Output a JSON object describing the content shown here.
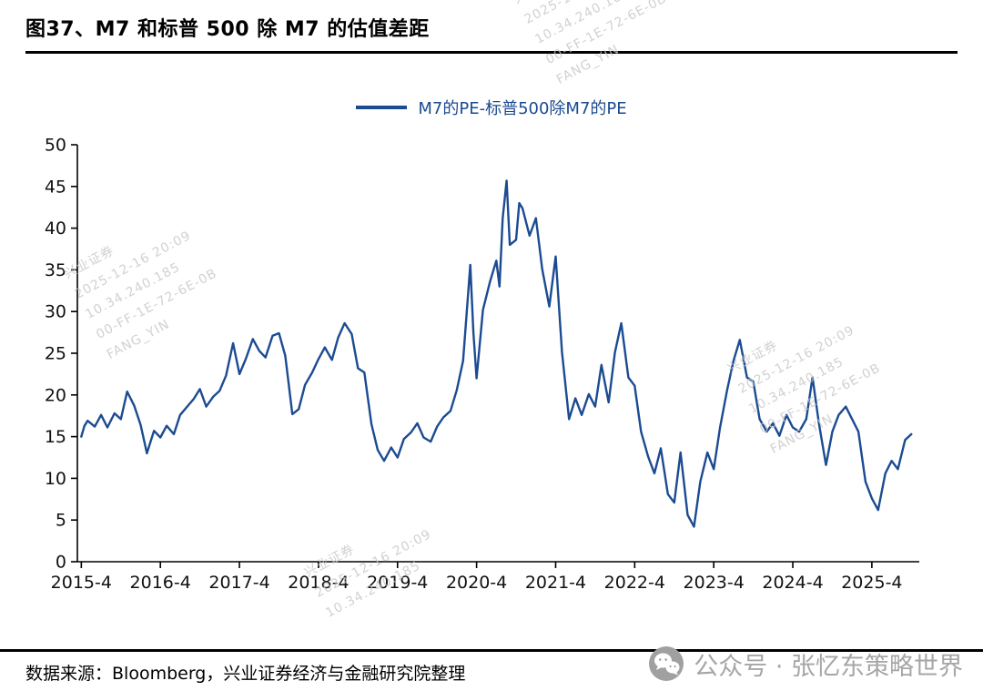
{
  "title": "图37、M7 和标普 500 除 M7 的估值差距",
  "legend": "M7的PE-标普500除M7的PE",
  "footer": {
    "source": "数据来源：Bloomberg，兴业证券经济与金融研究院整理"
  },
  "watermark": {
    "lines": [
      "兴业证券",
      "2025-12-16 20:09",
      "10.34.240.185",
      "00-FF-1E-72-6E-0B",
      "FANG_YIN"
    ],
    "social": "公众号 · 张忆东策略世界"
  },
  "colors": {
    "line": "#1b4b91",
    "axis": "#000000",
    "watermark": "#c6c6c6"
  },
  "chart_data": {
    "type": "line",
    "title": "图37、M7 和标普 500 除 M7 的估值差距",
    "xlabel": "",
    "ylabel": "",
    "grid": false,
    "legend_position": "top",
    "xlim": [
      2015.2,
      2025.85
    ],
    "ylim": [
      0,
      50
    ],
    "y_ticks": [
      0,
      5,
      10,
      15,
      20,
      25,
      30,
      35,
      40,
      45,
      50
    ],
    "x_tick_values": [
      2015.25,
      2016.25,
      2017.25,
      2018.25,
      2019.25,
      2020.25,
      2021.25,
      2022.25,
      2023.25,
      2024.25,
      2025.25
    ],
    "x_tick_labels": [
      "2015-4",
      "2016-4",
      "2017-4",
      "2018-4",
      "2019-4",
      "2020-4",
      "2021-4",
      "2022-4",
      "2023-4",
      "2024-4",
      "2025-4"
    ],
    "series": [
      {
        "name": "M7的PE-标普500除M7的PE",
        "points": [
          [
            2015.25,
            15.0
          ],
          [
            2015.29,
            16.3
          ],
          [
            2015.33,
            16.9
          ],
          [
            2015.42,
            16.2
          ],
          [
            2015.5,
            17.6
          ],
          [
            2015.58,
            16.1
          ],
          [
            2015.67,
            17.8
          ],
          [
            2015.75,
            17.1
          ],
          [
            2015.83,
            20.4
          ],
          [
            2015.92,
            18.7
          ],
          [
            2016.0,
            16.4
          ],
          [
            2016.08,
            13.0
          ],
          [
            2016.17,
            15.7
          ],
          [
            2016.25,
            14.9
          ],
          [
            2016.33,
            16.3
          ],
          [
            2016.42,
            15.3
          ],
          [
            2016.5,
            17.6
          ],
          [
            2016.58,
            18.5
          ],
          [
            2016.67,
            19.5
          ],
          [
            2016.75,
            20.7
          ],
          [
            2016.83,
            18.6
          ],
          [
            2016.92,
            19.8
          ],
          [
            2017.0,
            20.5
          ],
          [
            2017.08,
            22.3
          ],
          [
            2017.17,
            26.2
          ],
          [
            2017.25,
            22.5
          ],
          [
            2017.33,
            24.3
          ],
          [
            2017.42,
            26.7
          ],
          [
            2017.5,
            25.3
          ],
          [
            2017.58,
            24.5
          ],
          [
            2017.67,
            27.1
          ],
          [
            2017.75,
            27.4
          ],
          [
            2017.83,
            24.7
          ],
          [
            2017.92,
            17.7
          ],
          [
            2018.0,
            18.3
          ],
          [
            2018.08,
            21.2
          ],
          [
            2018.17,
            22.7
          ],
          [
            2018.25,
            24.3
          ],
          [
            2018.33,
            25.7
          ],
          [
            2018.42,
            24.2
          ],
          [
            2018.5,
            26.9
          ],
          [
            2018.58,
            28.6
          ],
          [
            2018.67,
            27.3
          ],
          [
            2018.75,
            23.2
          ],
          [
            2018.83,
            22.7
          ],
          [
            2018.92,
            16.5
          ],
          [
            2019.0,
            13.4
          ],
          [
            2019.08,
            12.1
          ],
          [
            2019.17,
            13.7
          ],
          [
            2019.25,
            12.5
          ],
          [
            2019.33,
            14.7
          ],
          [
            2019.42,
            15.5
          ],
          [
            2019.5,
            16.6
          ],
          [
            2019.58,
            14.9
          ],
          [
            2019.67,
            14.4
          ],
          [
            2019.75,
            16.2
          ],
          [
            2019.83,
            17.3
          ],
          [
            2019.92,
            18.1
          ],
          [
            2020.0,
            20.6
          ],
          [
            2020.08,
            24.1
          ],
          [
            2020.17,
            35.6
          ],
          [
            2020.21,
            27.5
          ],
          [
            2020.25,
            22.0
          ],
          [
            2020.33,
            30.2
          ],
          [
            2020.42,
            33.6
          ],
          [
            2020.5,
            36.1
          ],
          [
            2020.54,
            33.0
          ],
          [
            2020.58,
            41.2
          ],
          [
            2020.63,
            45.7
          ],
          [
            2020.67,
            38.0
          ],
          [
            2020.75,
            38.6
          ],
          [
            2020.79,
            43.0
          ],
          [
            2020.83,
            42.4
          ],
          [
            2020.92,
            39.1
          ],
          [
            2021.0,
            41.2
          ],
          [
            2021.08,
            35.1
          ],
          [
            2021.17,
            30.6
          ],
          [
            2021.25,
            36.6
          ],
          [
            2021.33,
            25.2
          ],
          [
            2021.42,
            17.1
          ],
          [
            2021.5,
            19.6
          ],
          [
            2021.58,
            17.6
          ],
          [
            2021.67,
            20.1
          ],
          [
            2021.75,
            18.6
          ],
          [
            2021.83,
            23.6
          ],
          [
            2021.92,
            19.1
          ],
          [
            2022.0,
            25.1
          ],
          [
            2022.08,
            28.6
          ],
          [
            2022.17,
            22.1
          ],
          [
            2022.25,
            21.1
          ],
          [
            2022.33,
            15.6
          ],
          [
            2022.42,
            12.6
          ],
          [
            2022.5,
            10.6
          ],
          [
            2022.58,
            13.6
          ],
          [
            2022.67,
            8.1
          ],
          [
            2022.75,
            7.1
          ],
          [
            2022.83,
            13.1
          ],
          [
            2022.92,
            5.6
          ],
          [
            2023.0,
            4.2
          ],
          [
            2023.08,
            9.6
          ],
          [
            2023.17,
            13.1
          ],
          [
            2023.25,
            11.1
          ],
          [
            2023.33,
            16.1
          ],
          [
            2023.42,
            20.6
          ],
          [
            2023.5,
            24.1
          ],
          [
            2023.58,
            26.6
          ],
          [
            2023.67,
            22.1
          ],
          [
            2023.75,
            21.6
          ],
          [
            2023.83,
            17.1
          ],
          [
            2023.92,
            15.6
          ],
          [
            2024.0,
            16.6
          ],
          [
            2024.08,
            15.1
          ],
          [
            2024.17,
            17.6
          ],
          [
            2024.25,
            16.1
          ],
          [
            2024.33,
            15.6
          ],
          [
            2024.42,
            17.1
          ],
          [
            2024.5,
            22.1
          ],
          [
            2024.58,
            16.6
          ],
          [
            2024.67,
            11.6
          ],
          [
            2024.75,
            15.6
          ],
          [
            2024.83,
            17.6
          ],
          [
            2024.92,
            18.6
          ],
          [
            2025.0,
            17.1
          ],
          [
            2025.08,
            15.6
          ],
          [
            2025.17,
            9.6
          ],
          [
            2025.25,
            7.6
          ],
          [
            2025.33,
            6.2
          ],
          [
            2025.42,
            10.6
          ],
          [
            2025.5,
            12.1
          ],
          [
            2025.58,
            11.1
          ],
          [
            2025.67,
            14.6
          ],
          [
            2025.75,
            15.3
          ]
        ]
      }
    ]
  }
}
